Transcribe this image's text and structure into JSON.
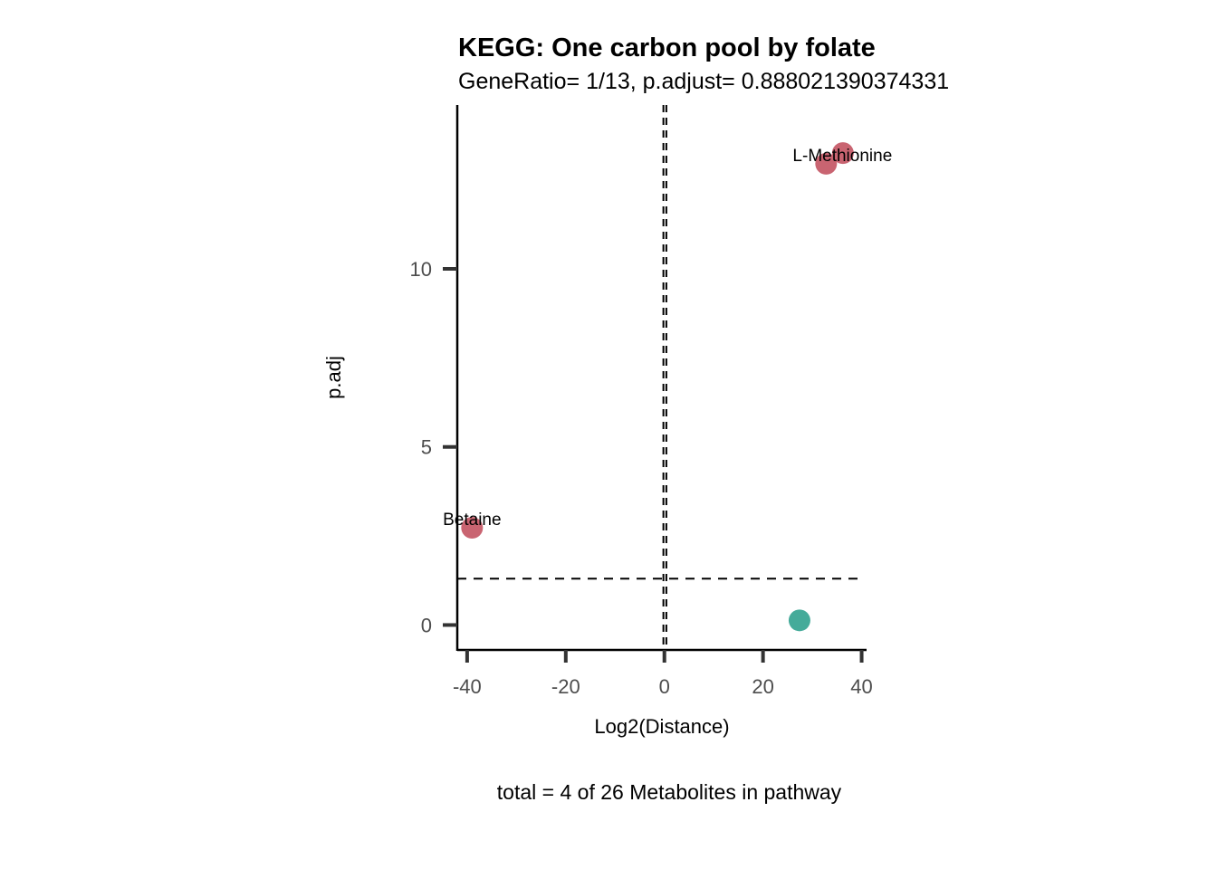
{
  "chart_data": {
    "type": "scatter",
    "title": "KEGG: One carbon pool by folate",
    "subtitle": "GeneRatio= 1/13, p.adjust= 0.888021390374331",
    "xlabel": "Log2(Distance)",
    "ylabel": "p.adj",
    "caption": "total = 4 of 26 Metabolites in pathway",
    "xlim": [
      -42,
      41
    ],
    "ylim": [
      -0.7,
      14.6
    ],
    "x_ticks": [
      -40,
      -20,
      0,
      20,
      40
    ],
    "x_tick_labels": [
      "-40",
      "-20",
      "0",
      "20",
      "40"
    ],
    "y_ticks": [
      0,
      5,
      10
    ],
    "y_tick_labels": [
      "0",
      "5",
      "10"
    ],
    "grid": false,
    "legend": "none",
    "reference_lines": {
      "vertical_x": [
        -0.2,
        0.4
      ],
      "horizontal_y": [
        1.3
      ]
    },
    "points": [
      {
        "x": 36.2,
        "y": 13.25,
        "color": "#c96471",
        "label": ""
      },
      {
        "x": 32.8,
        "y": 12.95,
        "color": "#c96471",
        "label": "L-Methionine"
      },
      {
        "x": -39.0,
        "y": 2.73,
        "color": "#c96471",
        "label": "Betaine"
      },
      {
        "x": 27.4,
        "y": 0.13,
        "color": "#45ab9a",
        "label": ""
      }
    ]
  }
}
